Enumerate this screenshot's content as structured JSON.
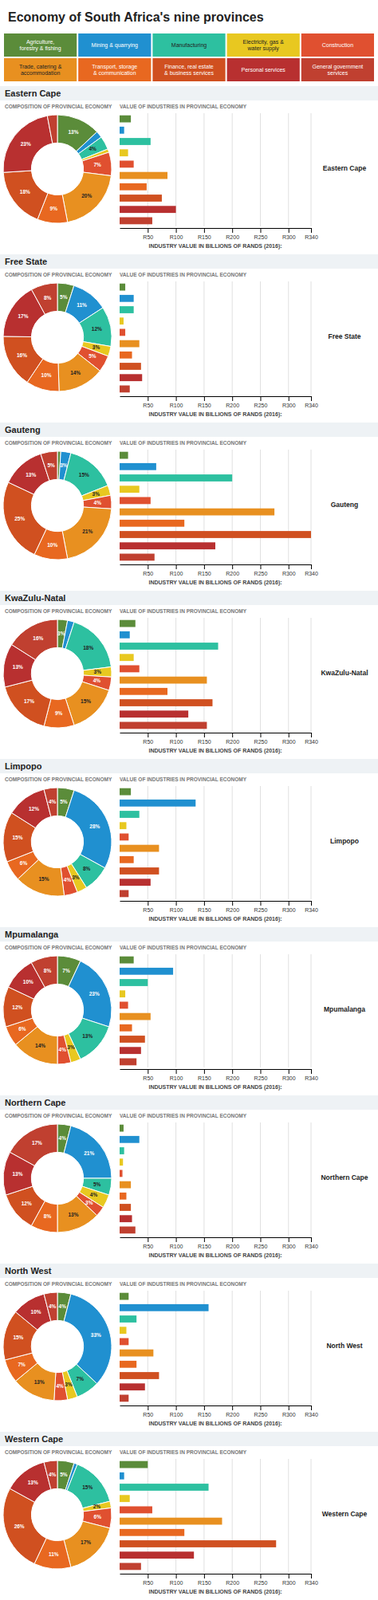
{
  "title": "Economy of South Africa's nine provinces",
  "categories": [
    "Agriculture,\nforestry & fishing",
    "Mining & quarrying",
    "Manufacturing",
    "Electricity, gas &\nwater supply",
    "Construction",
    "Trade, catering &\naccommodation",
    "Transport, storage\n& communication",
    "Finance, real estate\n& business services",
    "Personal services",
    "General government\nservices"
  ],
  "chart_data": [
    {
      "type": "pie",
      "title": "Eastern Cape",
      "subtitle": "COMPOSITION OF PROVINCIAL ECONOMY",
      "values": [
        13,
        2,
        4,
        1,
        7,
        20,
        9,
        18,
        23,
        3
      ],
      "value_labels": [
        "13%",
        null,
        "4%",
        null,
        "7%",
        "20%",
        "9%",
        "18%",
        "23%",
        null
      ],
      "data_labels": true,
      "colors": [
        "#5b8c3a",
        "#2090d0",
        "#2dc0a0",
        "#e8c820",
        "#e05030",
        "#e89020",
        "#e86820",
        "#d05020",
        "#b83030",
        "#c04030"
      ]
    },
    {
      "type": "bar",
      "orientation": "horizontal",
      "title": "Eastern Cape",
      "subtitle": "VALUE OF INDUSTRIES IN PROVINCIAL ECONOMY",
      "x_label": "INDUSTRY VALUE IN BILLIONS OF RANDS (2016):",
      "values": [
        20,
        8,
        55,
        15,
        25,
        85,
        48,
        75,
        100,
        58
      ],
      "colors": [
        "#5b8c3a",
        "#2090d0",
        "#2dc0a0",
        "#e8c820",
        "#e05030",
        "#e89020",
        "#e86820",
        "#d05020",
        "#b83030",
        "#c04030"
      ],
      "xlim": [
        0,
        340
      ],
      "xticks": [
        {
          "value": 50,
          "label": "R50"
        },
        {
          "value": 100,
          "label": "R100"
        },
        {
          "value": 150,
          "label": "R150"
        },
        {
          "value": 200,
          "label": "R200"
        },
        {
          "value": 250,
          "label": "R250"
        },
        {
          "value": 300,
          "label": "R300"
        },
        {
          "value": 340,
          "label": "R340"
        }
      ],
      "grid": true
    },
    {
      "type": "pie",
      "title": "Free State",
      "subtitle": "COMPOSITION OF PROVINCIAL ECONOMY",
      "values": [
        5,
        11,
        12,
        3,
        5,
        14,
        10,
        16,
        17,
        8
      ],
      "value_labels": [
        "5%",
        "11%",
        "12%",
        "3%",
        "5%",
        "14%",
        "10%",
        "16%",
        "17%",
        "8%"
      ],
      "data_labels": true,
      "colors": [
        "#5b8c3a",
        "#2090d0",
        "#2dc0a0",
        "#e8c820",
        "#e05030",
        "#e89020",
        "#e86820",
        "#d05020",
        "#b83030",
        "#c04030"
      ]
    },
    {
      "type": "bar",
      "orientation": "horizontal",
      "title": "Free State",
      "subtitle": "VALUE OF INDUSTRIES IN PROVINCIAL ECONOMY",
      "x_label": "INDUSTRY VALUE IN BILLIONS OF RANDS (2016):",
      "values": [
        10,
        25,
        25,
        7,
        10,
        35,
        22,
        38,
        40,
        18
      ],
      "colors": [
        "#5b8c3a",
        "#2090d0",
        "#2dc0a0",
        "#e8c820",
        "#e05030",
        "#e89020",
        "#e86820",
        "#d05020",
        "#b83030",
        "#c04030"
      ],
      "xlim": [
        0,
        340
      ],
      "xticks": [
        {
          "value": 50,
          "label": "R50"
        },
        {
          "value": 100,
          "label": "R100"
        },
        {
          "value": 150,
          "label": "R150"
        },
        {
          "value": 200,
          "label": "R200"
        },
        {
          "value": 250,
          "label": "R250"
        },
        {
          "value": 300,
          "label": "R300"
        },
        {
          "value": 340,
          "label": "R340"
        }
      ],
      "grid": true
    },
    {
      "type": "pie",
      "title": "Gauteng",
      "subtitle": "COMPOSITION OF PROVINCIAL ECONOMY",
      "values": [
        1,
        3,
        15,
        3,
        4,
        21,
        10,
        25,
        13,
        5
      ],
      "value_labels": [
        null,
        "3%",
        "15%",
        "3%",
        "4%",
        "21%",
        "10%",
        "25%",
        "13%",
        "5%"
      ],
      "data_labels": true,
      "colors": [
        "#5b8c3a",
        "#2090d0",
        "#2dc0a0",
        "#e8c820",
        "#e05030",
        "#e89020",
        "#e86820",
        "#d05020",
        "#b83030",
        "#c04030"
      ]
    },
    {
      "type": "bar",
      "orientation": "horizontal",
      "title": "Gauteng",
      "subtitle": "VALUE OF INDUSTRIES IN PROVINCIAL ECONOMY",
      "x_label": "INDUSTRY VALUE IN BILLIONS OF RANDS (2016):",
      "values": [
        15,
        65,
        200,
        35,
        55,
        275,
        115,
        340,
        170,
        62
      ],
      "colors": [
        "#5b8c3a",
        "#2090d0",
        "#2dc0a0",
        "#e8c820",
        "#e05030",
        "#e89020",
        "#e86820",
        "#d05020",
        "#b83030",
        "#c04030"
      ],
      "xlim": [
        0,
        340
      ],
      "xticks": [
        {
          "value": 50,
          "label": "R50"
        },
        {
          "value": 100,
          "label": "R100"
        },
        {
          "value": 150,
          "label": "R150"
        },
        {
          "value": 200,
          "label": "R200"
        },
        {
          "value": 250,
          "label": "R250"
        },
        {
          "value": 300,
          "label": "R300"
        },
        {
          "value": 340,
          "label": "R340"
        }
      ],
      "grid": true
    },
    {
      "type": "pie",
      "title": "KwaZulu-Natal",
      "subtitle": "COMPOSITION OF PROVINCIAL ECONOMY",
      "values": [
        3,
        2,
        18,
        3,
        4,
        15,
        9,
        17,
        13,
        16
      ],
      "value_labels": [
        "3%",
        null,
        "18%",
        "3%",
        "4%",
        "15%",
        "9%",
        "17%",
        "13%",
        "16%"
      ],
      "data_labels": true,
      "colors": [
        "#5b8c3a",
        "#2090d0",
        "#2dc0a0",
        "#e8c820",
        "#e05030",
        "#e89020",
        "#e86820",
        "#d05020",
        "#b83030",
        "#c04030"
      ]
    },
    {
      "type": "bar",
      "orientation": "horizontal",
      "title": "KwaZulu-Natal",
      "subtitle": "VALUE OF INDUSTRIES IN PROVINCIAL ECONOMY",
      "x_label": "INDUSTRY VALUE IN BILLIONS OF RANDS (2016):",
      "values": [
        28,
        18,
        175,
        25,
        35,
        155,
        85,
        165,
        122,
        155
      ],
      "colors": [
        "#5b8c3a",
        "#2090d0",
        "#2dc0a0",
        "#e8c820",
        "#e05030",
        "#e89020",
        "#e86820",
        "#d05020",
        "#b83030",
        "#c04030"
      ],
      "xlim": [
        0,
        340
      ],
      "xticks": [
        {
          "value": 50,
          "label": "R50"
        },
        {
          "value": 100,
          "label": "R100"
        },
        {
          "value": 150,
          "label": "R150"
        },
        {
          "value": 200,
          "label": "R200"
        },
        {
          "value": 250,
          "label": "R250"
        },
        {
          "value": 300,
          "label": "R300"
        },
        {
          "value": 340,
          "label": "R340"
        }
      ],
      "grid": true
    },
    {
      "type": "pie",
      "title": "Limpopo",
      "subtitle": "COMPOSITION OF PROVINCIAL ECONOMY",
      "values": [
        5,
        28,
        8,
        3,
        4,
        15,
        6,
        15,
        12,
        4
      ],
      "value_labels": [
        "5%",
        "28%",
        "8%",
        "3%",
        "4%",
        "15%",
        "6%",
        "15%",
        "12%",
        "4%"
      ],
      "data_labels": true,
      "colors": [
        "#5b8c3a",
        "#2090d0",
        "#2dc0a0",
        "#e8c820",
        "#e05030",
        "#e89020",
        "#e86820",
        "#d05020",
        "#b83030",
        "#c04030"
      ]
    },
    {
      "type": "bar",
      "orientation": "horizontal",
      "title": "Limpopo",
      "subtitle": "VALUE OF INDUSTRIES IN PROVINCIAL ECONOMY",
      "x_label": "INDUSTRY VALUE IN BILLIONS OF RANDS (2016):",
      "values": [
        20,
        135,
        35,
        12,
        16,
        70,
        25,
        70,
        55,
        16
      ],
      "colors": [
        "#5b8c3a",
        "#2090d0",
        "#2dc0a0",
        "#e8c820",
        "#e05030",
        "#e89020",
        "#e86820",
        "#d05020",
        "#b83030",
        "#c04030"
      ],
      "xlim": [
        0,
        340
      ],
      "xticks": [
        {
          "value": 50,
          "label": "R50"
        },
        {
          "value": 100,
          "label": "R100"
        },
        {
          "value": 150,
          "label": "R150"
        },
        {
          "value": 200,
          "label": "R200"
        },
        {
          "value": 250,
          "label": "R250"
        },
        {
          "value": 300,
          "label": "R300"
        },
        {
          "value": 340,
          "label": "R340"
        }
      ],
      "grid": true
    },
    {
      "type": "pie",
      "title": "Mpumalanga",
      "subtitle": "COMPOSITION OF PROVINCIAL ECONOMY",
      "values": [
        7,
        23,
        13,
        3,
        4,
        14,
        6,
        12,
        10,
        8
      ],
      "value_labels": [
        "7%",
        "23%",
        "13%",
        "3%",
        "4%",
        "14%",
        "6%",
        "12%",
        "10%",
        "8%"
      ],
      "data_labels": true,
      "colors": [
        "#5b8c3a",
        "#2090d0",
        "#2dc0a0",
        "#e8c820",
        "#e05030",
        "#e89020",
        "#e86820",
        "#d05020",
        "#b83030",
        "#c04030"
      ]
    },
    {
      "type": "bar",
      "orientation": "horizontal",
      "title": "Mpumalanga",
      "subtitle": "VALUE OF INDUSTRIES IN PROVINCIAL ECONOMY",
      "x_label": "INDUSTRY VALUE IN BILLIONS OF RANDS (2016):",
      "values": [
        25,
        95,
        50,
        10,
        15,
        55,
        22,
        45,
        38,
        30
      ],
      "colors": [
        "#5b8c3a",
        "#2090d0",
        "#2dc0a0",
        "#e8c820",
        "#e05030",
        "#e89020",
        "#e86820",
        "#d05020",
        "#b83030",
        "#c04030"
      ],
      "xlim": [
        0,
        340
      ],
      "xticks": [
        {
          "value": 50,
          "label": "R50"
        },
        {
          "value": 100,
          "label": "R100"
        },
        {
          "value": 150,
          "label": "R150"
        },
        {
          "value": 200,
          "label": "R200"
        },
        {
          "value": 250,
          "label": "R250"
        },
        {
          "value": 300,
          "label": "R300"
        },
        {
          "value": 340,
          "label": "R340"
        }
      ],
      "grid": true
    },
    {
      "type": "pie",
      "title": "Northern Cape",
      "subtitle": "COMPOSITION OF PROVINCIAL ECONOMY",
      "values": [
        4,
        21,
        5,
        4,
        3,
        13,
        8,
        12,
        13,
        17
      ],
      "value_labels": [
        "4%",
        "21%",
        "5%",
        "4%",
        "3%",
        "13%",
        "8%",
        "12%",
        "13%",
        "17%"
      ],
      "data_labels": true,
      "colors": [
        "#5b8c3a",
        "#2090d0",
        "#2dc0a0",
        "#e8c820",
        "#e05030",
        "#e89020",
        "#e86820",
        "#d05020",
        "#b83030",
        "#c04030"
      ]
    },
    {
      "type": "bar",
      "orientation": "horizontal",
      "title": "Northern Cape",
      "subtitle": "VALUE OF INDUSTRIES IN PROVINCIAL ECONOMY",
      "x_label": "INDUSTRY VALUE IN BILLIONS OF RANDS (2016):",
      "values": [
        7,
        35,
        8,
        6,
        5,
        20,
        12,
        20,
        22,
        28
      ],
      "colors": [
        "#5b8c3a",
        "#2090d0",
        "#2dc0a0",
        "#e8c820",
        "#e05030",
        "#e89020",
        "#e86820",
        "#d05020",
        "#b83030",
        "#c04030"
      ],
      "xlim": [
        0,
        340
      ],
      "xticks": [
        {
          "value": 50,
          "label": "R50"
        },
        {
          "value": 100,
          "label": "R100"
        },
        {
          "value": 150,
          "label": "R150"
        },
        {
          "value": 200,
          "label": "R200"
        },
        {
          "value": 250,
          "label": "R250"
        },
        {
          "value": 300,
          "label": "R300"
        },
        {
          "value": 340,
          "label": "R340"
        }
      ],
      "grid": true
    },
    {
      "type": "pie",
      "title": "North West",
      "subtitle": "COMPOSITION OF PROVINCIAL ECONOMY",
      "values": [
        4,
        33,
        7,
        3,
        4,
        13,
        7,
        15,
        10,
        4
      ],
      "value_labels": [
        "4%",
        "33%",
        "7%",
        "3%",
        "4%",
        "13%",
        "7%",
        "15%",
        "10%",
        "4%"
      ],
      "data_labels": true,
      "colors": [
        "#5b8c3a",
        "#2090d0",
        "#2dc0a0",
        "#e8c820",
        "#e05030",
        "#e89020",
        "#e86820",
        "#d05020",
        "#b83030",
        "#c04030"
      ]
    },
    {
      "type": "bar",
      "orientation": "horizontal",
      "title": "North West",
      "subtitle": "VALUE OF INDUSTRIES IN PROVINCIAL ECONOMY",
      "x_label": "INDUSTRY VALUE IN BILLIONS OF RANDS (2016):",
      "values": [
        16,
        158,
        30,
        12,
        16,
        60,
        30,
        70,
        45,
        16
      ],
      "colors": [
        "#5b8c3a",
        "#2090d0",
        "#2dc0a0",
        "#e8c820",
        "#e05030",
        "#e89020",
        "#e86820",
        "#d05020",
        "#b83030",
        "#c04030"
      ],
      "xlim": [
        0,
        340
      ],
      "xticks": [
        {
          "value": 50,
          "label": "R50"
        },
        {
          "value": 100,
          "label": "R100"
        },
        {
          "value": 150,
          "label": "R150"
        },
        {
          "value": 200,
          "label": "R200"
        },
        {
          "value": 250,
          "label": "R250"
        },
        {
          "value": 300,
          "label": "R300"
        },
        {
          "value": 340,
          "label": "R340"
        }
      ],
      "grid": true
    },
    {
      "type": "pie",
      "title": "Western Cape",
      "subtitle": "COMPOSITION OF PROVINCIAL ECONOMY",
      "values": [
        5,
        1,
        15,
        2,
        6,
        17,
        11,
        26,
        13,
        4
      ],
      "value_labels": [
        "5%",
        null,
        "15%",
        "2%",
        "6%",
        "17%",
        "11%",
        "26%",
        "13%",
        "4%"
      ],
      "data_labels": true,
      "colors": [
        "#5b8c3a",
        "#2090d0",
        "#2dc0a0",
        "#e8c820",
        "#e05030",
        "#e89020",
        "#e86820",
        "#d05020",
        "#b83030",
        "#c04030"
      ]
    },
    {
      "type": "bar",
      "orientation": "horizontal",
      "title": "Western Cape",
      "subtitle": "VALUE OF INDUSTRIES IN PROVINCIAL ECONOMY",
      "x_label": "INDUSTRY VALUE IN BILLIONS OF RANDS (2016):",
      "values": [
        50,
        8,
        158,
        18,
        58,
        182,
        115,
        278,
        132,
        38
      ],
      "colors": [
        "#5b8c3a",
        "#2090d0",
        "#2dc0a0",
        "#e8c820",
        "#e05030",
        "#e89020",
        "#e86820",
        "#d05020",
        "#b83030",
        "#c04030"
      ],
      "xlim": [
        0,
        340
      ],
      "xticks": [
        {
          "value": 50,
          "label": "R50"
        },
        {
          "value": 100,
          "label": "R100"
        },
        {
          "value": 150,
          "label": "R150"
        },
        {
          "value": 200,
          "label": "R200"
        },
        {
          "value": 250,
          "label": "R250"
        },
        {
          "value": 300,
          "label": "R300"
        },
        {
          "value": 340,
          "label": "R340"
        }
      ],
      "grid": true
    }
  ]
}
